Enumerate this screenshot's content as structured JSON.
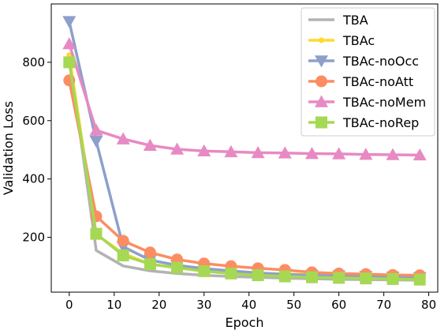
{
  "chart_data": {
    "type": "line",
    "xlabel": "Epoch",
    "ylabel": "Validation Loss",
    "xlim": [
      -4,
      82
    ],
    "ylim": [
      12,
      1000
    ],
    "xticks": [
      0,
      10,
      20,
      30,
      40,
      50,
      60,
      70,
      80
    ],
    "yticks": [
      200,
      400,
      600,
      800
    ],
    "grid": false,
    "legend_position": "top-right",
    "x": [
      0,
      6,
      12,
      18,
      24,
      30,
      36,
      42,
      48,
      54,
      60,
      66,
      72,
      78
    ],
    "series": [
      {
        "name": "TBA",
        "color": "#b3b3b3",
        "marker": "none",
        "values": [
          820,
          155,
          102,
          85,
          76,
          70,
          66,
          63,
          60,
          58,
          56,
          55,
          54,
          53
        ]
      },
      {
        "name": "TBAc",
        "color": "#ffd92f",
        "marker": "small-circle",
        "values": [
          825,
          210,
          145,
          108,
          95,
          85,
          80,
          77,
          74,
          72,
          70,
          68,
          66,
          64
        ]
      },
      {
        "name": "TBAc-noOcc",
        "color": "#8da0cb",
        "marker": "triangle-down",
        "values": [
          940,
          530,
          168,
          122,
          104,
          93,
          85,
          78,
          73,
          70,
          68,
          66,
          64,
          62
        ]
      },
      {
        "name": "TBAc-noAtt",
        "color": "#fc8d62",
        "marker": "circle",
        "values": [
          738,
          272,
          188,
          148,
          124,
          110,
          101,
          94,
          88,
          80,
          76,
          74,
          71,
          70
        ]
      },
      {
        "name": "TBAc-noMem",
        "color": "#e78ac3",
        "marker": "triangle-up",
        "values": [
          863,
          567,
          537,
          515,
          502,
          496,
          493,
          490,
          489,
          487,
          486,
          484,
          483,
          482
        ]
      },
      {
        "name": "TBAc-noRep",
        "color": "#a6d854",
        "marker": "square",
        "values": [
          800,
          212,
          138,
          108,
          96,
          84,
          76,
          70,
          66,
          63,
          61,
          59,
          57,
          55
        ]
      }
    ]
  }
}
